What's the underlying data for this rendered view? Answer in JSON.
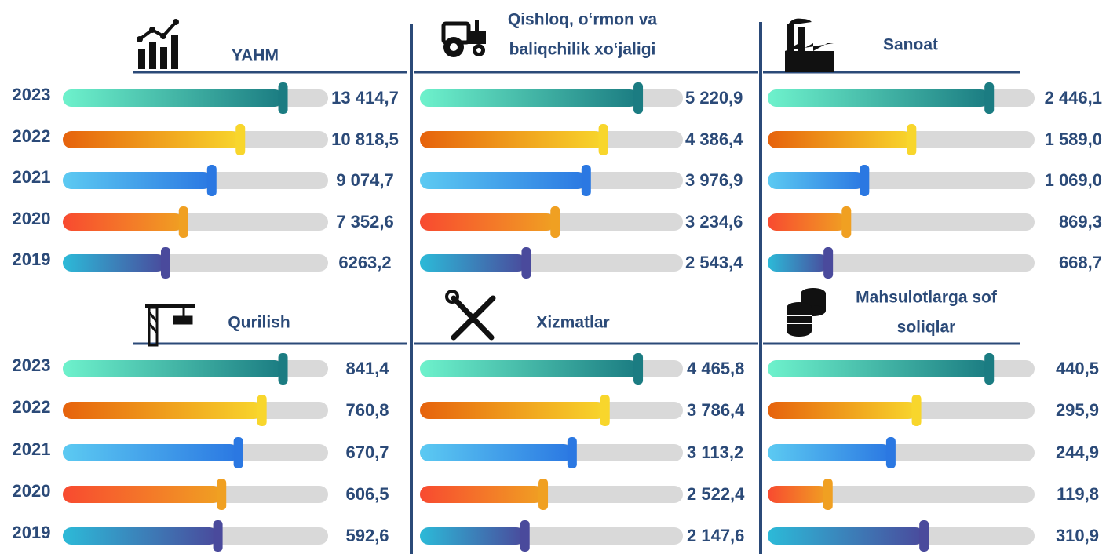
{
  "chart_data": [
    {
      "type": "bar",
      "title": "YAHM",
      "categories": [
        "2023",
        "2022",
        "2021",
        "2020",
        "2019"
      ],
      "values": [
        13414.7,
        10818.5,
        9074.7,
        7352.6,
        6263.2
      ],
      "value_labels": [
        "13 414,7",
        "10 818,5",
        "9 074,7",
        "7 352,6",
        "6263,2"
      ],
      "colors": [
        [
          "#6ef2cc",
          "#1b7c82"
        ],
        [
          "#e6620c",
          "#f8d62c"
        ],
        [
          "#5ccaf2",
          "#2b78e2"
        ],
        [
          "#f84a30",
          "#f0a022"
        ],
        [
          "#2cbad8",
          "#4a4a9c"
        ]
      ]
    },
    {
      "type": "bar",
      "title": [
        "Qishloq, o‘rmon va",
        "baliqchilik xo‘jaligi"
      ],
      "values": [
        5220.9,
        4386.4,
        3976.9,
        3234.6,
        2543.4
      ],
      "value_labels": [
        "5 220,9",
        "4 386,4",
        "3 976,9",
        "3 234,6",
        "2 543,4"
      ],
      "colors": [
        [
          "#6ef2cc",
          "#1b7c82"
        ],
        [
          "#e6620c",
          "#f8d62c"
        ],
        [
          "#5ccaf2",
          "#2b78e2"
        ],
        [
          "#f84a30",
          "#f0a022"
        ],
        [
          "#2cbad8",
          "#4a4a9c"
        ]
      ]
    },
    {
      "type": "bar",
      "title": "Sanoat",
      "values": [
        2446.1,
        1589.0,
        1069.0,
        869.3,
        668.7
      ],
      "value_labels": [
        "2 446,1",
        "1 589,0",
        "1 069,0",
        "869,3",
        "668,7"
      ],
      "colors": [
        [
          "#6ef2cc",
          "#1b7c82"
        ],
        [
          "#e6620c",
          "#f8d62c"
        ],
        [
          "#5ccaf2",
          "#2b78e2"
        ],
        [
          "#f84a30",
          "#f0a022"
        ],
        [
          "#2cbad8",
          "#4a4a9c"
        ]
      ]
    },
    {
      "type": "bar",
      "title": "Qurilish",
      "categories": [
        "2023",
        "2022",
        "2021",
        "2020",
        "2019"
      ],
      "values": [
        841.4,
        760.8,
        670.7,
        606.5,
        592.6
      ],
      "value_labels": [
        "841,4",
        "760,8",
        "670,7",
        "606,5",
        "592,6"
      ],
      "colors": [
        [
          "#6ef2cc",
          "#1b7c82"
        ],
        [
          "#e6620c",
          "#f8d62c"
        ],
        [
          "#5ccaf2",
          "#2b78e2"
        ],
        [
          "#f84a30",
          "#f0a022"
        ],
        [
          "#2cbad8",
          "#4a4a9c"
        ]
      ]
    },
    {
      "type": "bar",
      "title": "Xizmatlar",
      "values": [
        4465.8,
        3786.4,
        3113.2,
        2522.4,
        2147.6
      ],
      "value_labels": [
        "4 465,8",
        "3 786,4",
        "3 113,2",
        "2 522,4",
        "2 147,6"
      ],
      "colors": [
        [
          "#6ef2cc",
          "#1b7c82"
        ],
        [
          "#e6620c",
          "#f8d62c"
        ],
        [
          "#5ccaf2",
          "#2b78e2"
        ],
        [
          "#f84a30",
          "#f0a022"
        ],
        [
          "#2cbad8",
          "#4a4a9c"
        ]
      ]
    },
    {
      "type": "bar",
      "title": [
        "Mahsulotlarga sof",
        "soliqlar"
      ],
      "values": [
        440.5,
        295.9,
        244.9,
        119.8,
        310.9
      ],
      "value_labels": [
        "440,5",
        "295,9",
        "244,9",
        "119,8",
        "310,9"
      ],
      "colors": [
        [
          "#6ef2cc",
          "#1b7c82"
        ],
        [
          "#e6620c",
          "#f8d62c"
        ],
        [
          "#5ccaf2",
          "#2b78e2"
        ],
        [
          "#f84a30",
          "#f0a022"
        ],
        [
          "#2cbad8",
          "#4a4a9c"
        ]
      ]
    }
  ]
}
